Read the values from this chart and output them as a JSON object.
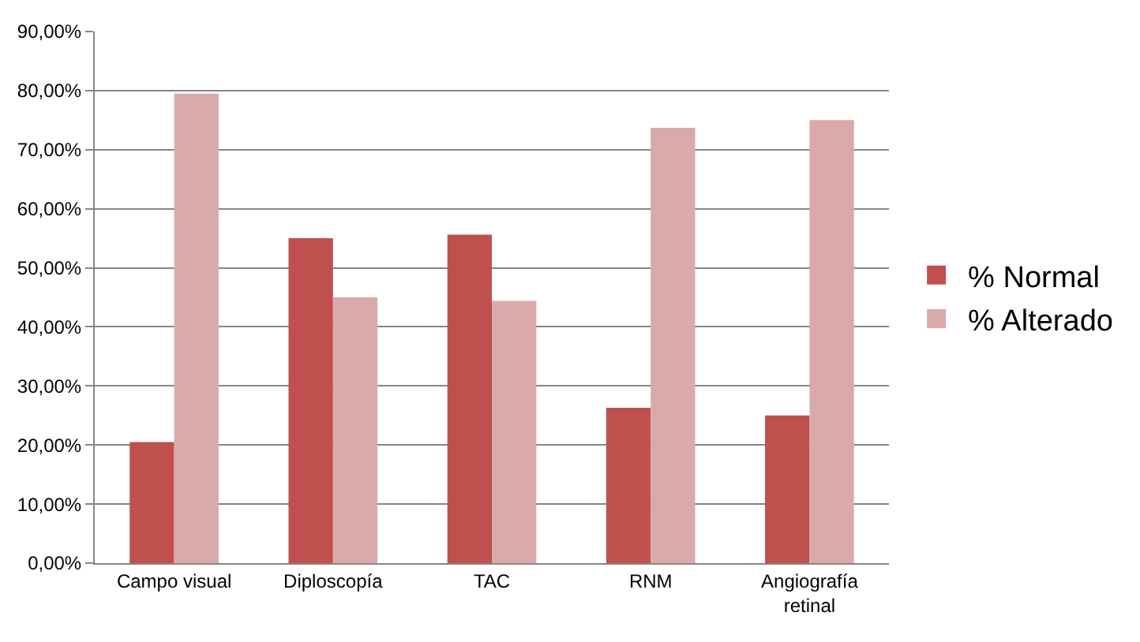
{
  "chart_data": {
    "type": "bar",
    "categories": [
      "Campo visual",
      "Diploscopía",
      "TAC",
      "RNM",
      "Angiografía retinal"
    ],
    "series": [
      {
        "name": "% Normal",
        "color": "#c0504d",
        "values": [
          20.5,
          55,
          55.6,
          26.3,
          25
        ]
      },
      {
        "name": "% Alterado",
        "color": "#d9aaa9",
        "values": [
          79.5,
          45,
          44.4,
          73.7,
          75
        ]
      }
    ],
    "ylim": [
      0,
      90
    ],
    "yticks": [
      {
        "value": 0,
        "label": "0,00%"
      },
      {
        "value": 10,
        "label": "10,00%"
      },
      {
        "value": 20,
        "label": "20,00%"
      },
      {
        "value": 30,
        "label": "30,00%"
      },
      {
        "value": 40,
        "label": "40,00%"
      },
      {
        "value": 50,
        "label": "50,00%"
      },
      {
        "value": 60,
        "label": "60,00%"
      },
      {
        "value": 70,
        "label": "70,00%"
      },
      {
        "value": 80,
        "label": "80,00%"
      },
      {
        "value": 90,
        "label": "90,00%"
      }
    ],
    "grid": "y",
    "legend": "right"
  }
}
